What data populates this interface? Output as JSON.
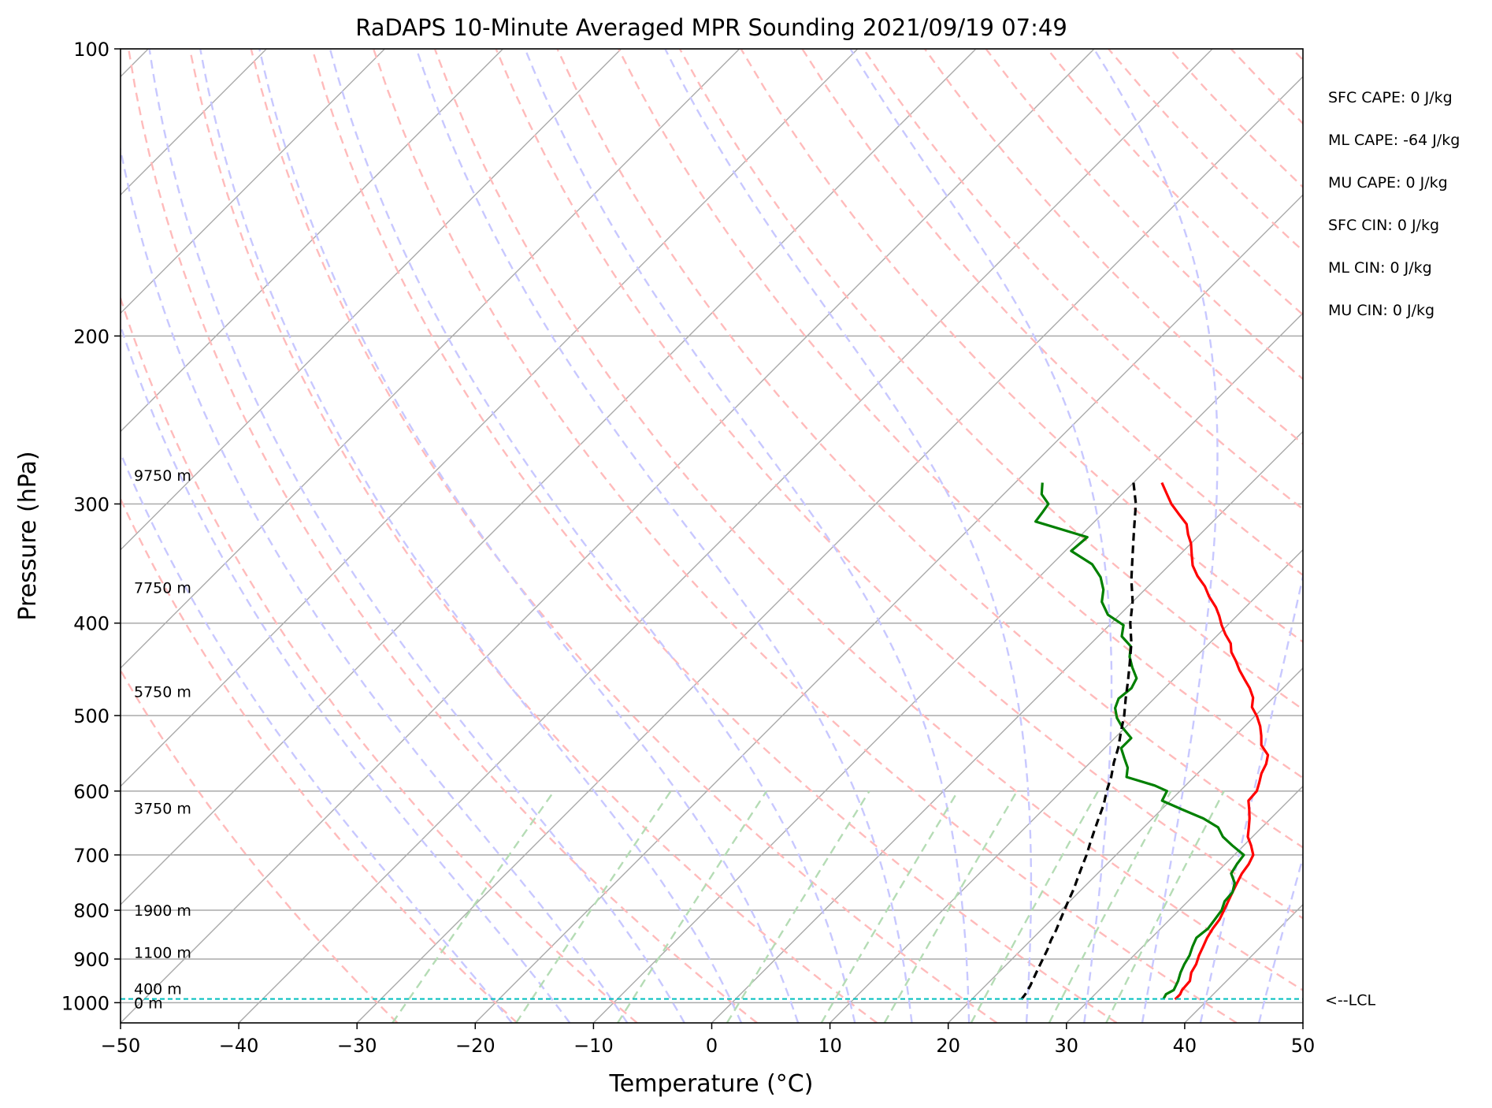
{
  "chart_data": {
    "type": "line",
    "subtype": "skew-T log-P",
    "title": "RaDAPS 10-Minute Averaged MPR Sounding 2021/09/19 07:49",
    "xlabel": "Temperature (°C)",
    "ylabel": "Pressure (hPa)",
    "xlim": [
      -50,
      50
    ],
    "ylim": [
      1050,
      100
    ],
    "log_y": true,
    "grid": true,
    "x_ticks": [
      -50,
      -40,
      -30,
      -20,
      -10,
      0,
      10,
      20,
      30,
      40,
      50
    ],
    "x_tick_labels": [
      "−50",
      "−40",
      "−30",
      "−20",
      "−10",
      "0",
      "10",
      "20",
      "30",
      "40",
      "50"
    ],
    "y_ticks": [
      100,
      200,
      300,
      400,
      500,
      600,
      700,
      800,
      900,
      1000
    ],
    "y_tick_labels": [
      "100",
      "200",
      "300",
      "400",
      "500",
      "600",
      "700",
      "800",
      "900",
      "1000"
    ],
    "series": [
      {
        "role": "temperature",
        "color": "#ff0000",
        "points": [
          [
            -7.6,
            285
          ],
          [
            -6.2,
            293
          ],
          [
            -5.0,
            300
          ],
          [
            -3.6,
            307
          ],
          [
            -2.0,
            315
          ],
          [
            -1.0,
            323
          ],
          [
            0.0,
            330
          ],
          [
            1.0,
            339
          ],
          [
            2.0,
            348
          ],
          [
            3.3,
            357
          ],
          [
            4.8,
            366
          ],
          [
            6.0,
            375
          ],
          [
            7.5,
            385
          ],
          [
            8.5,
            393
          ],
          [
            9.5,
            402
          ],
          [
            10.6,
            411
          ],
          [
            11.8,
            420
          ],
          [
            12.6,
            429
          ],
          [
            13.7,
            438
          ],
          [
            14.8,
            448
          ],
          [
            16.0,
            458
          ],
          [
            17.2,
            468
          ],
          [
            18.3,
            479
          ],
          [
            19.0,
            490
          ],
          [
            20.2,
            501
          ],
          [
            21.3,
            513
          ],
          [
            22.2,
            525
          ],
          [
            23.0,
            537
          ],
          [
            24.4,
            550
          ],
          [
            25.0,
            562
          ],
          [
            25.4,
            575
          ],
          [
            26.0,
            588
          ],
          [
            26.5,
            600
          ],
          [
            26.6,
            614
          ],
          [
            27.4,
            627
          ],
          [
            28.2,
            641
          ],
          [
            28.9,
            655
          ],
          [
            29.6,
            670
          ],
          [
            30.6,
            684
          ],
          [
            31.6,
            700
          ],
          [
            32.0,
            716
          ],
          [
            32.2,
            732
          ],
          [
            32.6,
            749
          ],
          [
            33.0,
            766
          ],
          [
            33.4,
            783
          ],
          [
            33.8,
            800
          ],
          [
            34.2,
            818
          ],
          [
            34.4,
            836
          ],
          [
            34.7,
            855
          ],
          [
            35.1,
            873
          ],
          [
            35.5,
            892
          ],
          [
            36.0,
            911
          ],
          [
            36.3,
            930
          ],
          [
            36.9,
            949
          ],
          [
            37.0,
            970
          ],
          [
            37.2,
            980
          ],
          [
            37.2,
            992
          ]
        ]
      },
      {
        "role": "dewpoint",
        "color": "#008000",
        "points": [
          [
            -17.7,
            285
          ],
          [
            -16.8,
            293
          ],
          [
            -15.4,
            300
          ],
          [
            -15.2,
            306
          ],
          [
            -15.0,
            313
          ],
          [
            -9.3,
            325
          ],
          [
            -9.5,
            336
          ],
          [
            -6.6,
            347
          ],
          [
            -4.8,
            358
          ],
          [
            -3.5,
            369
          ],
          [
            -2.6,
            380
          ],
          [
            -1.0,
            392
          ],
          [
            1.2,
            402
          ],
          [
            2.0,
            413
          ],
          [
            3.6,
            423
          ],
          [
            4.4,
            434
          ],
          [
            5.5,
            445
          ],
          [
            6.8,
            457
          ],
          [
            7.2,
            468
          ],
          [
            7.0,
            480
          ],
          [
            7.5,
            491
          ],
          [
            8.5,
            503
          ],
          [
            9.8,
            515
          ],
          [
            11.4,
            528
          ],
          [
            11.4,
            541
          ],
          [
            12.5,
            554
          ],
          [
            13.6,
            567
          ],
          [
            14.3,
            580
          ],
          [
            17.4,
            592
          ],
          [
            18.9,
            600
          ],
          [
            19.3,
            614
          ],
          [
            21.7,
            627
          ],
          [
            24.3,
            641
          ],
          [
            26.3,
            655
          ],
          [
            27.5,
            670
          ],
          [
            29.0,
            684
          ],
          [
            30.8,
            700
          ],
          [
            31.0,
            716
          ],
          [
            31.3,
            732
          ],
          [
            32.4,
            749
          ],
          [
            33.0,
            766
          ],
          [
            33.1,
            783
          ],
          [
            33.6,
            800
          ],
          [
            33.8,
            818
          ],
          [
            34.0,
            836
          ],
          [
            33.8,
            855
          ],
          [
            34.2,
            873
          ],
          [
            34.7,
            892
          ],
          [
            35.0,
            911
          ],
          [
            35.4,
            930
          ],
          [
            35.9,
            949
          ],
          [
            36.3,
            970
          ],
          [
            36.0,
            980
          ],
          [
            36.2,
            992
          ]
        ]
      },
      {
        "role": "parcel",
        "color": "#000000",
        "style": "dashed",
        "points": [
          [
            -10.0,
            285
          ],
          [
            -8.0,
            300
          ],
          [
            -5.9,
            320
          ],
          [
            -3.9,
            340
          ],
          [
            -2.0,
            360
          ],
          [
            0.0,
            380
          ],
          [
            1.6,
            400
          ],
          [
            3.4,
            420
          ],
          [
            4.9,
            440
          ],
          [
            6.3,
            460
          ],
          [
            7.6,
            480
          ],
          [
            8.9,
            500
          ],
          [
            10.0,
            520
          ],
          [
            11.1,
            540
          ],
          [
            12.0,
            560
          ],
          [
            13.0,
            580
          ],
          [
            13.8,
            600
          ],
          [
            14.7,
            620
          ],
          [
            15.4,
            640
          ],
          [
            16.1,
            660
          ],
          [
            16.8,
            680
          ],
          [
            17.5,
            700
          ],
          [
            18.1,
            720
          ],
          [
            18.7,
            740
          ],
          [
            19.3,
            760
          ],
          [
            19.8,
            780
          ],
          [
            20.3,
            800
          ],
          [
            20.8,
            820
          ],
          [
            21.3,
            840
          ],
          [
            21.7,
            860
          ],
          [
            22.2,
            880
          ],
          [
            22.6,
            900
          ],
          [
            23.0,
            920
          ],
          [
            23.4,
            940
          ],
          [
            23.8,
            960
          ],
          [
            24.1,
            980
          ],
          [
            24.2,
            992
          ]
        ]
      }
    ],
    "height_labels": [
      {
        "text": "9750 m",
        "p": 280
      },
      {
        "text": "7750 m",
        "p": 367
      },
      {
        "text": "5750 m",
        "p": 472
      },
      {
        "text": "3750 m",
        "p": 625
      },
      {
        "text": "1900 m",
        "p": 800
      },
      {
        "text": "1100 m",
        "p": 886
      },
      {
        "text": "400 m",
        "p": 967
      },
      {
        "text": "0 m",
        "p": 1000
      }
    ],
    "lcl": {
      "p": 991,
      "label": "<--LCL",
      "color": "#00bfbf"
    },
    "indices": [
      "SFC CAPE: 0 J/kg",
      "ML CAPE: -64 J/kg",
      "MU CAPE: 0 J/kg",
      "SFC CIN: 0 J/kg",
      "ML CIN: 0 J/kg",
      "MU CIN: 0 J/kg"
    ],
    "background_colors": {
      "isotherm": "#aaaaaa",
      "dry_adiabat": "#ffbbbb",
      "moist_adiabat": "#c8c8ff",
      "mixing_ratio": "#b5dcb5"
    }
  }
}
